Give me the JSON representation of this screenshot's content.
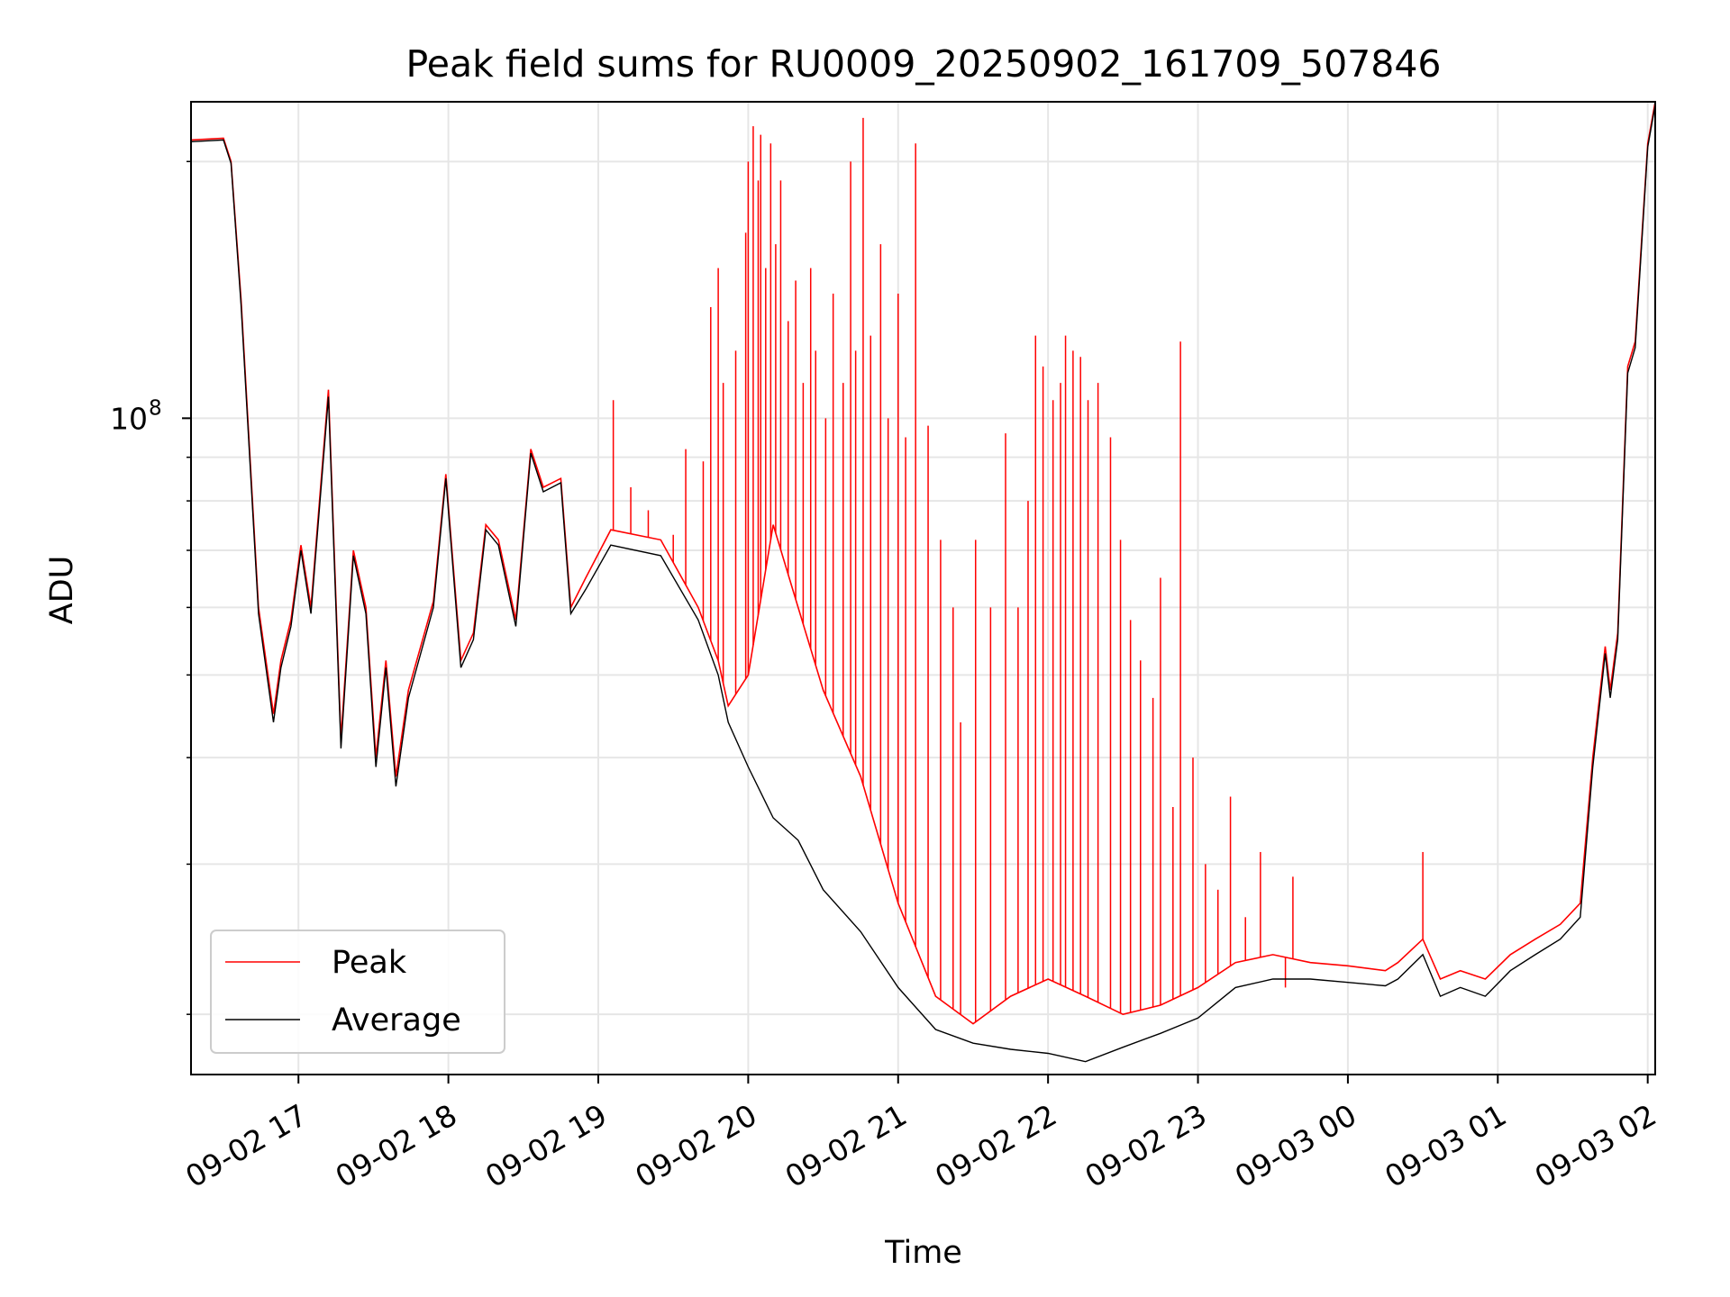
{
  "chart_data": {
    "type": "line",
    "title": "Peak field sums for RU0009_20250902_161709_507846",
    "xlabel": "Time",
    "ylabel": "ADU",
    "y_scale": "log",
    "xlim": [
      "2025-09-02 16:17",
      "2025-09-03 02:03"
    ],
    "ylim": [
      17000000,
      235000000
    ],
    "x_ticks": [
      {
        "t": "2025-09-02 17:00",
        "label": "09-02 17"
      },
      {
        "t": "2025-09-02 18:00",
        "label": "09-02 18"
      },
      {
        "t": "2025-09-02 19:00",
        "label": "09-02 19"
      },
      {
        "t": "2025-09-02 20:00",
        "label": "09-02 20"
      },
      {
        "t": "2025-09-02 21:00",
        "label": "09-02 21"
      },
      {
        "t": "2025-09-02 22:00",
        "label": "09-02 22"
      },
      {
        "t": "2025-09-02 23:00",
        "label": "09-02 23"
      },
      {
        "t": "2025-09-03 00:00",
        "label": "09-03 00"
      },
      {
        "t": "2025-09-03 01:00",
        "label": "09-03 01"
      },
      {
        "t": "2025-09-03 02:00",
        "label": "09-03 02"
      }
    ],
    "y_major_tick": {
      "value": 100000000,
      "label_base": "10",
      "label_exp": "8"
    },
    "y_minor_ticks": [
      20000000,
      30000000,
      40000000,
      50000000,
      60000000,
      70000000,
      80000000,
      90000000,
      200000000
    ],
    "grid": true,
    "legend_position": "lower-left",
    "series": [
      {
        "name": "Peak",
        "color": "#ff0000",
        "points": [
          [
            "2025-09-02 16:17",
            212000000
          ],
          [
            "2025-09-02 16:30",
            213000000
          ],
          [
            "2025-09-02 16:33",
            200000000
          ],
          [
            "2025-09-02 16:37",
            138000000
          ],
          [
            "2025-09-02 16:44",
            60000000
          ],
          [
            "2025-09-02 16:50",
            45000000
          ],
          [
            "2025-09-02 16:53",
            52000000
          ],
          [
            "2025-09-02 16:57",
            58000000
          ],
          [
            "2025-09-02 17:01",
            71000000
          ],
          [
            "2025-09-02 17:05",
            60000000
          ],
          [
            "2025-09-02 17:12",
            108000000
          ],
          [
            "2025-09-02 17:17",
            42000000
          ],
          [
            "2025-09-02 17:22",
            70000000
          ],
          [
            "2025-09-02 17:27",
            60000000
          ],
          [
            "2025-09-02 17:31",
            40000000
          ],
          [
            "2025-09-02 17:35",
            52000000
          ],
          [
            "2025-09-02 17:39",
            38000000
          ],
          [
            "2025-09-02 17:44",
            48000000
          ],
          [
            "2025-09-02 17:54",
            61000000
          ],
          [
            "2025-09-02 17:59",
            86000000
          ],
          [
            "2025-09-02 18:05",
            52000000
          ],
          [
            "2025-09-02 18:10",
            56000000
          ],
          [
            "2025-09-02 18:15",
            75000000
          ],
          [
            "2025-09-02 18:20",
            72000000
          ],
          [
            "2025-09-02 18:27",
            58000000
          ],
          [
            "2025-09-02 18:33",
            92000000
          ],
          [
            "2025-09-02 18:38",
            83000000
          ],
          [
            "2025-09-02 18:45",
            85000000
          ],
          [
            "2025-09-02 18:49",
            60000000
          ],
          [
            "2025-09-02 18:55",
            65000000
          ],
          [
            "2025-09-02 19:05",
            74000000
          ],
          [
            "2025-09-02 19:25",
            72000000
          ],
          [
            "2025-09-02 19:40",
            60000000
          ],
          [
            "2025-09-02 19:48",
            52000000
          ],
          [
            "2025-09-02 19:52",
            46000000
          ],
          [
            "2025-09-02 20:00",
            50000000
          ],
          [
            "2025-09-02 20:10",
            75000000
          ],
          [
            "2025-09-02 20:20",
            60000000
          ],
          [
            "2025-09-02 20:30",
            48000000
          ],
          [
            "2025-09-02 20:45",
            38000000
          ],
          [
            "2025-09-02 21:00",
            27000000
          ],
          [
            "2025-09-02 21:15",
            21000000
          ],
          [
            "2025-09-02 21:30",
            19500000
          ],
          [
            "2025-09-02 21:45",
            21000000
          ],
          [
            "2025-09-02 22:00",
            22000000
          ],
          [
            "2025-09-02 22:15",
            21000000
          ],
          [
            "2025-09-02 22:30",
            20000000
          ],
          [
            "2025-09-02 22:45",
            20500000
          ],
          [
            "2025-09-02 23:00",
            21500000
          ],
          [
            "2025-09-02 23:15",
            23000000
          ],
          [
            "2025-09-02 23:30",
            23500000
          ],
          [
            "2025-09-02 23:45",
            23000000
          ],
          [
            "2025-09-03 00:00",
            22800000
          ],
          [
            "2025-09-03 00:15",
            22500000
          ],
          [
            "2025-09-03 00:20",
            23000000
          ],
          [
            "2025-09-03 00:30",
            24500000
          ],
          [
            "2025-09-03 00:37",
            22000000
          ],
          [
            "2025-09-03 00:45",
            22500000
          ],
          [
            "2025-09-03 00:55",
            22000000
          ],
          [
            "2025-09-03 01:05",
            23500000
          ],
          [
            "2025-09-03 01:15",
            24500000
          ],
          [
            "2025-09-03 01:25",
            25500000
          ],
          [
            "2025-09-03 01:33",
            27000000
          ],
          [
            "2025-09-03 01:38",
            40000000
          ],
          [
            "2025-09-03 01:43",
            54000000
          ],
          [
            "2025-09-03 01:45",
            48000000
          ],
          [
            "2025-09-03 01:48",
            56000000
          ],
          [
            "2025-09-03 01:52",
            115000000
          ],
          [
            "2025-09-03 01:55",
            123000000
          ],
          [
            "2025-09-03 02:00",
            210000000
          ],
          [
            "2025-09-03 02:03",
            235000000
          ]
        ]
      },
      {
        "name": "Average",
        "color": "#000000",
        "points": [
          [
            "2025-09-02 16:17",
            211000000
          ],
          [
            "2025-09-02 16:30",
            212000000
          ],
          [
            "2025-09-02 16:33",
            199000000
          ],
          [
            "2025-09-02 16:37",
            136000000
          ],
          [
            "2025-09-02 16:44",
            59000000
          ],
          [
            "2025-09-02 16:50",
            44000000
          ],
          [
            "2025-09-02 16:53",
            51000000
          ],
          [
            "2025-09-02 16:57",
            57000000
          ],
          [
            "2025-09-02 17:01",
            70000000
          ],
          [
            "2025-09-02 17:05",
            59000000
          ],
          [
            "2025-09-02 17:12",
            106000000
          ],
          [
            "2025-09-02 17:17",
            41000000
          ],
          [
            "2025-09-02 17:22",
            69000000
          ],
          [
            "2025-09-02 17:27",
            59000000
          ],
          [
            "2025-09-02 17:31",
            39000000
          ],
          [
            "2025-09-02 17:35",
            51000000
          ],
          [
            "2025-09-02 17:39",
            37000000
          ],
          [
            "2025-09-02 17:44",
            47000000
          ],
          [
            "2025-09-02 17:54",
            60000000
          ],
          [
            "2025-09-02 17:59",
            85000000
          ],
          [
            "2025-09-02 18:05",
            51000000
          ],
          [
            "2025-09-02 18:10",
            55000000
          ],
          [
            "2025-09-02 18:15",
            74000000
          ],
          [
            "2025-09-02 18:20",
            71000000
          ],
          [
            "2025-09-02 18:27",
            57000000
          ],
          [
            "2025-09-02 18:33",
            91000000
          ],
          [
            "2025-09-02 18:38",
            82000000
          ],
          [
            "2025-09-02 18:45",
            84000000
          ],
          [
            "2025-09-02 18:49",
            59000000
          ],
          [
            "2025-09-02 18:55",
            63000000
          ],
          [
            "2025-09-02 19:05",
            71000000
          ],
          [
            "2025-09-02 19:25",
            69000000
          ],
          [
            "2025-09-02 19:40",
            58000000
          ],
          [
            "2025-09-02 19:48",
            50000000
          ],
          [
            "2025-09-02 19:52",
            44000000
          ],
          [
            "2025-09-02 20:00",
            39000000
          ],
          [
            "2025-09-02 20:10",
            34000000
          ],
          [
            "2025-09-02 20:20",
            32000000
          ],
          [
            "2025-09-02 20:30",
            28000000
          ],
          [
            "2025-09-02 20:45",
            25000000
          ],
          [
            "2025-09-02 21:00",
            21500000
          ],
          [
            "2025-09-02 21:15",
            19200000
          ],
          [
            "2025-09-02 21:30",
            18500000
          ],
          [
            "2025-09-02 21:45",
            18200000
          ],
          [
            "2025-09-02 22:00",
            18000000
          ],
          [
            "2025-09-02 22:15",
            17600000
          ],
          [
            "2025-09-02 22:30",
            18300000
          ],
          [
            "2025-09-02 22:45",
            19000000
          ],
          [
            "2025-09-02 23:00",
            19800000
          ],
          [
            "2025-09-02 23:15",
            21500000
          ],
          [
            "2025-09-02 23:30",
            22000000
          ],
          [
            "2025-09-02 23:45",
            22000000
          ],
          [
            "2025-09-03 00:00",
            21800000
          ],
          [
            "2025-09-03 00:15",
            21600000
          ],
          [
            "2025-09-03 00:20",
            22000000
          ],
          [
            "2025-09-03 00:30",
            23500000
          ],
          [
            "2025-09-03 00:37",
            21000000
          ],
          [
            "2025-09-03 00:45",
            21500000
          ],
          [
            "2025-09-03 00:55",
            21000000
          ],
          [
            "2025-09-03 01:05",
            22500000
          ],
          [
            "2025-09-03 01:15",
            23500000
          ],
          [
            "2025-09-03 01:25",
            24500000
          ],
          [
            "2025-09-03 01:33",
            26000000
          ],
          [
            "2025-09-03 01:38",
            39000000
          ],
          [
            "2025-09-03 01:43",
            53000000
          ],
          [
            "2025-09-03 01:45",
            47000000
          ],
          [
            "2025-09-03 01:48",
            55000000
          ],
          [
            "2025-09-03 01:52",
            113000000
          ],
          [
            "2025-09-03 01:55",
            121000000
          ],
          [
            "2025-09-03 02:00",
            208000000
          ],
          [
            "2025-09-03 02:03",
            233000000
          ]
        ]
      }
    ],
    "peak_spikes": [
      [
        "2025-09-02 19:06",
        105000000
      ],
      [
        "2025-09-02 19:13",
        83000000
      ],
      [
        "2025-09-02 19:20",
        78000000
      ],
      [
        "2025-09-02 19:30",
        73000000
      ],
      [
        "2025-09-02 19:35",
        92000000
      ],
      [
        "2025-09-02 19:42",
        89000000
      ],
      [
        "2025-09-02 19:45",
        135000000
      ],
      [
        "2025-09-02 19:48",
        150000000
      ],
      [
        "2025-09-02 19:50",
        110000000
      ],
      [
        "2025-09-02 19:55",
        120000000
      ],
      [
        "2025-09-02 19:59",
        165000000
      ],
      [
        "2025-09-02 20:00",
        200000000
      ],
      [
        "2025-09-02 20:02",
        220000000
      ],
      [
        "2025-09-02 20:04",
        190000000
      ],
      [
        "2025-09-02 20:05",
        215000000
      ],
      [
        "2025-09-02 20:07",
        150000000
      ],
      [
        "2025-09-02 20:09",
        210000000
      ],
      [
        "2025-09-02 20:11",
        160000000
      ],
      [
        "2025-09-02 20:13",
        190000000
      ],
      [
        "2025-09-02 20:16",
        130000000
      ],
      [
        "2025-09-02 20:19",
        145000000
      ],
      [
        "2025-09-02 20:22",
        110000000
      ],
      [
        "2025-09-02 20:25",
        150000000
      ],
      [
        "2025-09-02 20:27",
        120000000
      ],
      [
        "2025-09-02 20:31",
        100000000
      ],
      [
        "2025-09-02 20:34",
        140000000
      ],
      [
        "2025-09-02 20:38",
        110000000
      ],
      [
        "2025-09-02 20:41",
        200000000
      ],
      [
        "2025-09-02 20:43",
        120000000
      ],
      [
        "2025-09-02 20:46",
        225000000
      ],
      [
        "2025-09-02 20:49",
        125000000
      ],
      [
        "2025-09-02 20:53",
        160000000
      ],
      [
        "2025-09-02 20:56",
        100000000
      ],
      [
        "2025-09-02 21:00",
        140000000
      ],
      [
        "2025-09-02 21:03",
        95000000
      ],
      [
        "2025-09-02 21:07",
        210000000
      ],
      [
        "2025-09-02 21:12",
        98000000
      ],
      [
        "2025-09-02 21:17",
        72000000
      ],
      [
        "2025-09-02 21:22",
        60000000
      ],
      [
        "2025-09-02 21:25",
        44000000
      ],
      [
        "2025-09-02 21:31",
        72000000
      ],
      [
        "2025-09-02 21:37",
        60000000
      ],
      [
        "2025-09-02 21:43",
        96000000
      ],
      [
        "2025-09-02 21:48",
        60000000
      ],
      [
        "2025-09-02 21:52",
        80000000
      ],
      [
        "2025-09-02 21:55",
        125000000
      ],
      [
        "2025-09-02 21:58",
        115000000
      ],
      [
        "2025-09-02 22:02",
        105000000
      ],
      [
        "2025-09-02 22:05",
        110000000
      ],
      [
        "2025-09-02 22:07",
        125000000
      ],
      [
        "2025-09-02 22:10",
        120000000
      ],
      [
        "2025-09-02 22:13",
        118000000
      ],
      [
        "2025-09-02 22:16",
        105000000
      ],
      [
        "2025-09-02 22:20",
        110000000
      ],
      [
        "2025-09-02 22:25",
        95000000
      ],
      [
        "2025-09-02 22:29",
        72000000
      ],
      [
        "2025-09-02 22:33",
        58000000
      ],
      [
        "2025-09-02 22:37",
        52000000
      ],
      [
        "2025-09-02 22:42",
        47000000
      ],
      [
        "2025-09-02 22:45",
        65000000
      ],
      [
        "2025-09-02 22:50",
        35000000
      ],
      [
        "2025-09-02 22:53",
        123000000
      ],
      [
        "2025-09-02 22:58",
        40000000
      ],
      [
        "2025-09-02 23:03",
        30000000
      ],
      [
        "2025-09-02 23:08",
        28000000
      ],
      [
        "2025-09-02 23:13",
        36000000
      ],
      [
        "2025-09-02 23:19",
        26000000
      ],
      [
        "2025-09-02 23:25",
        31000000
      ],
      [
        "2025-09-02 23:35",
        21500000
      ],
      [
        "2025-09-02 23:38",
        29000000
      ],
      [
        "2025-09-03 00:30",
        31000000
      ]
    ]
  },
  "legend": {
    "peak_label": "Peak",
    "average_label": "Average"
  }
}
